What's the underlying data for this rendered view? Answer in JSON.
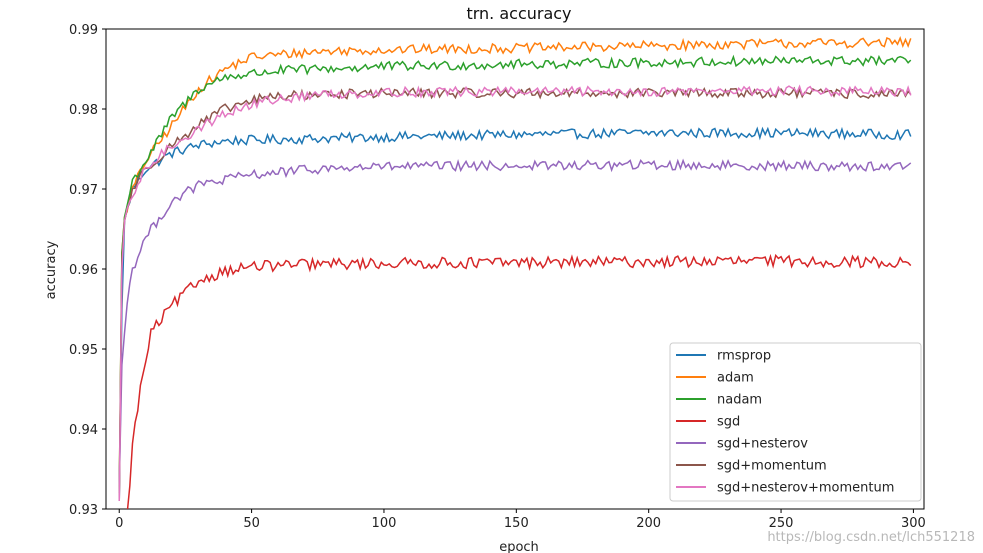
{
  "chart_data": {
    "type": "line",
    "title": "trn. accuracy",
    "xlabel": "epoch",
    "ylabel": "accuracy",
    "xlim": [
      -5,
      304
    ],
    "ylim": [
      0.93,
      0.99
    ],
    "x_ticks": [
      0,
      50,
      100,
      150,
      200,
      250,
      300
    ],
    "y_ticks": [
      0.93,
      0.94,
      0.95,
      0.96,
      0.97,
      0.98,
      0.99
    ],
    "grid": false,
    "legend_position": "lower-right",
    "epochs": 300,
    "series": [
      {
        "name": "rmsprop",
        "color": "#1f77b4",
        "start": 0.931,
        "values_at": [
          [
            1,
            0.955
          ],
          [
            2,
            0.966
          ],
          [
            5,
            0.97
          ],
          [
            10,
            0.9725
          ],
          [
            20,
            0.9745
          ],
          [
            30,
            0.9755
          ],
          [
            40,
            0.976
          ],
          [
            60,
            0.9762
          ],
          [
            100,
            0.9765
          ],
          [
            150,
            0.9768
          ],
          [
            200,
            0.977
          ],
          [
            250,
            0.977
          ],
          [
            298,
            0.9768
          ]
        ],
        "noise": 0.0006
      },
      {
        "name": "adam",
        "color": "#ff7f0e",
        "start": 0.932,
        "values_at": [
          [
            1,
            0.962
          ],
          [
            2,
            0.9665
          ],
          [
            5,
            0.97
          ],
          [
            10,
            0.9735
          ],
          [
            20,
            0.978
          ],
          [
            30,
            0.9825
          ],
          [
            40,
            0.985
          ],
          [
            50,
            0.9865
          ],
          [
            75,
            0.9872
          ],
          [
            100,
            0.9874
          ],
          [
            150,
            0.9876
          ],
          [
            200,
            0.9879
          ],
          [
            250,
            0.9882
          ],
          [
            298,
            0.9883
          ]
        ],
        "noise": 0.0006
      },
      {
        "name": "nadam",
        "color": "#2ca02c",
        "start": 0.932,
        "values_at": [
          [
            1,
            0.962
          ],
          [
            2,
            0.9665
          ],
          [
            5,
            0.971
          ],
          [
            10,
            0.9735
          ],
          [
            20,
            0.979
          ],
          [
            30,
            0.9825
          ],
          [
            40,
            0.984
          ],
          [
            60,
            0.9848
          ],
          [
            100,
            0.9853
          ],
          [
            150,
            0.9856
          ],
          [
            200,
            0.9858
          ],
          [
            250,
            0.986
          ],
          [
            298,
            0.986
          ]
        ],
        "noise": 0.0006
      },
      {
        "name": "sgd",
        "color": "#d62728",
        "start": 0.929,
        "values_at": [
          [
            3,
            0.929
          ],
          [
            5,
            0.938
          ],
          [
            8,
            0.945
          ],
          [
            12,
            0.952
          ],
          [
            20,
            0.9555
          ],
          [
            30,
            0.9585
          ],
          [
            40,
            0.9598
          ],
          [
            50,
            0.9603
          ],
          [
            75,
            0.9606
          ],
          [
            100,
            0.9607
          ],
          [
            150,
            0.9608
          ],
          [
            200,
            0.9609
          ],
          [
            250,
            0.961
          ],
          [
            298,
            0.9608
          ]
        ],
        "noise": 0.0007
      },
      {
        "name": "sgd+nesterov",
        "color": "#9467bd",
        "start": 0.933,
        "values_at": [
          [
            1,
            0.948
          ],
          [
            3,
            0.956
          ],
          [
            5,
            0.96
          ],
          [
            10,
            0.964
          ],
          [
            20,
            0.9685
          ],
          [
            30,
            0.9705
          ],
          [
            50,
            0.9718
          ],
          [
            75,
            0.9725
          ],
          [
            100,
            0.9728
          ],
          [
            150,
            0.9729
          ],
          [
            200,
            0.973
          ],
          [
            250,
            0.9729
          ],
          [
            298,
            0.9728
          ]
        ],
        "noise": 0.0006
      },
      {
        "name": "sgd+momentum",
        "color": "#8c564b",
        "start": 0.931,
        "values_at": [
          [
            1,
            0.961
          ],
          [
            2,
            0.966
          ],
          [
            5,
            0.97
          ],
          [
            10,
            0.9725
          ],
          [
            20,
            0.9755
          ],
          [
            30,
            0.978
          ],
          [
            40,
            0.98
          ],
          [
            55,
            0.9815
          ],
          [
            75,
            0.9818
          ],
          [
            100,
            0.982
          ],
          [
            150,
            0.982
          ],
          [
            200,
            0.982
          ],
          [
            250,
            0.982
          ],
          [
            298,
            0.9818
          ]
        ],
        "noise": 0.0006
      },
      {
        "name": "sgd+nesterov+momentum",
        "color": "#e377c2",
        "start": 0.931,
        "values_at": [
          [
            1,
            0.96
          ],
          [
            2,
            0.966
          ],
          [
            5,
            0.969
          ],
          [
            10,
            0.9725
          ],
          [
            20,
            0.9755
          ],
          [
            30,
            0.9775
          ],
          [
            40,
            0.9795
          ],
          [
            55,
            0.981
          ],
          [
            75,
            0.9818
          ],
          [
            100,
            0.9821
          ],
          [
            150,
            0.9822
          ],
          [
            200,
            0.9822
          ],
          [
            250,
            0.9823
          ],
          [
            298,
            0.9821
          ]
        ],
        "noise": 0.0006
      }
    ]
  },
  "watermark": "https://blog.csdn.net/lch551218"
}
